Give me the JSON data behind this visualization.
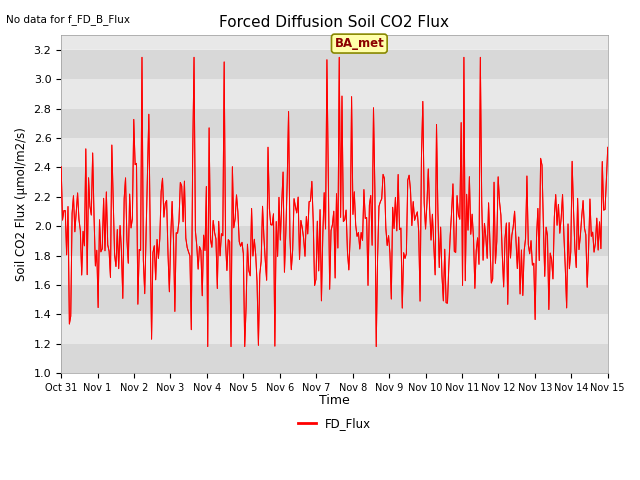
{
  "title": "Forced Diffusion Soil CO2 Flux",
  "ylabel": "Soil CO2 Flux (μmol/m2/s)",
  "xlabel": "Time",
  "top_left_text": "No data for f_FD_B_Flux",
  "legend_label": "FD_Flux",
  "annotation_box": "BA_met",
  "ylim": [
    1.0,
    3.3
  ],
  "yticks": [
    1.0,
    1.2,
    1.4,
    1.6,
    1.8,
    2.0,
    2.2,
    2.4,
    2.6,
    2.8,
    3.0,
    3.2
  ],
  "line_color": "red",
  "axes_bg": "#e8e8e8",
  "grid_color": "#ffffff",
  "num_points": 400,
  "seed": 7
}
